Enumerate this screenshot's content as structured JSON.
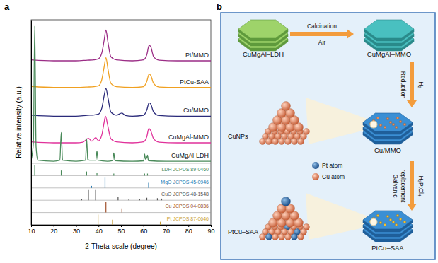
{
  "chart_data": {
    "type": "line",
    "title": "a",
    "x_label": "2-Theta-scale (degree)",
    "y_label": "Relative intensity (a.u.)",
    "xlim": [
      10,
      90
    ],
    "xticks": [
      10,
      20,
      30,
      40,
      50,
      60,
      70,
      80,
      90
    ],
    "ylim": [
      0,
      100
    ],
    "tick_labels": "x",
    "series": [
      {
        "name": "Pt/MMO",
        "color": "#9b2d86",
        "x": [
          10,
          20,
          30,
          35,
          38,
          40,
          41.5,
          42.5,
          43.3,
          44.2,
          45.5,
          48,
          55,
          60,
          61.5,
          62.5,
          63.2,
          64.5,
          67,
          75,
          90
        ],
        "values": [
          80.5,
          80,
          80,
          80.3,
          80.5,
          81,
          84,
          90,
          95,
          89,
          82,
          80.5,
          80,
          80.5,
          83,
          87.5,
          87,
          82,
          80.3,
          80,
          80
        ]
      },
      {
        "name": "PtCu-SAA",
        "color": "#f0a020",
        "x": [
          10,
          20,
          30,
          35,
          38,
          40,
          41.5,
          42.5,
          43.3,
          44.2,
          45.5,
          48,
          55,
          60,
          61.5,
          62.5,
          63.2,
          64.5,
          67,
          75,
          90
        ],
        "values": [
          67.5,
          67,
          67,
          67.2,
          67.4,
          67.8,
          71,
          77,
          81.5,
          76,
          69,
          67.4,
          67,
          67.4,
          70,
          73.5,
          73,
          69,
          67.2,
          67,
          67
        ]
      },
      {
        "name": "Cu/MMO",
        "color": "#2a2a7a",
        "x": [
          10,
          20,
          30,
          35,
          38,
          40,
          41.5,
          42.5,
          43.3,
          44.2,
          45.5,
          48,
          50.4,
          52,
          55,
          60,
          61.5,
          62.5,
          63.2,
          64.5,
          67,
          75,
          90
        ],
        "values": [
          53.5,
          53,
          53,
          53.4,
          53.6,
          54,
          57,
          63,
          66.5,
          62,
          55,
          53.5,
          54.5,
          53.3,
          53,
          53.4,
          56,
          59.5,
          59,
          55,
          53.3,
          53,
          53
        ]
      },
      {
        "name": "CuMgAl-MMO",
        "color": "#e0309a",
        "x": [
          10,
          20,
          30,
          33,
          35.5,
          37,
          38.7,
          40,
          41.5,
          42.5,
          43.1,
          44,
          45.5,
          48,
          55,
          60,
          61.5,
          62.4,
          63.2,
          64.5,
          67,
          75,
          90
        ],
        "values": [
          40.5,
          40,
          40,
          40.3,
          42.2,
          40.8,
          42.5,
          41,
          44,
          50,
          53,
          49,
          42,
          40.5,
          40,
          40.5,
          43,
          47,
          46,
          42,
          40.3,
          40,
          40
        ]
      },
      {
        "name": "CuMgAl-LDH",
        "color": "#4a8a5a",
        "x": [
          10,
          11,
          11.6,
          12.2,
          13,
          20,
          22.8,
          23.4,
          24,
          30,
          34.2,
          34.7,
          35.2,
          36,
          38.8,
          39.3,
          39.8,
          44,
          46.3,
          46.8,
          47.3,
          55,
          60.1,
          60.5,
          60.9,
          61.4,
          61.8,
          62.2,
          70,
          90
        ],
        "values": [
          31.5,
          40,
          97,
          38,
          31.5,
          31,
          31.5,
          45,
          31.5,
          31,
          31.5,
          42,
          32,
          31.5,
          31.5,
          36,
          31.5,
          31,
          31.3,
          35,
          31.3,
          31,
          31.2,
          34.5,
          32,
          32.5,
          34,
          31.3,
          31,
          31
        ]
      }
    ],
    "references": [
      {
        "name": "LDH JCPDS 89-0460",
        "color": "#4a8a5a",
        "baseline": 24,
        "x": [
          11.6,
          23.4,
          34.7,
          39.3,
          46.8,
          60.5,
          61.8
        ],
        "values": [
          5,
          2.5,
          2,
          1.5,
          1,
          1,
          1
        ]
      },
      {
        "name": "MgO JCPDS 45-0946",
        "color": "#2a7ab0",
        "baseline": 18,
        "x": [
          36.9,
          42.9,
          62.3
        ],
        "values": [
          1,
          5,
          2.5
        ]
      },
      {
        "name": "CuO JCPDS 48-1548",
        "color": "#555555",
        "baseline": 12,
        "x": [
          32.5,
          35.5,
          38.7,
          48.7,
          53.5,
          58.3,
          61.5,
          66.2,
          68.1
        ],
        "values": [
          0.7,
          5,
          5,
          1.5,
          0.8,
          0.8,
          1.2,
          1,
          0.8
        ]
      },
      {
        "name": "Cu JCPDS 04-0836",
        "color": "#a0522d",
        "baseline": 6,
        "x": [
          43.3,
          50.4
        ],
        "values": [
          5,
          2
        ]
      },
      {
        "name": "Pt JCPDS 87-0646",
        "color": "#c8a040",
        "baseline": 0,
        "x": [
          39.8,
          46.2,
          67.5
        ],
        "values": [
          5,
          2.5,
          1.5
        ]
      }
    ]
  },
  "diagram": {
    "title": "b",
    "nodes": [
      {
        "label": "CuMgAl–LDH"
      },
      {
        "label": "CuMgAl–MMO"
      },
      {
        "label": "Cu/MMO"
      },
      {
        "label": "PtCu–SAA"
      }
    ],
    "steps": [
      {
        "lines": [
          "Calcination"
        ],
        "condition": "Air"
      },
      {
        "lines": [
          "Reduction"
        ],
        "condition": "H₂"
      },
      {
        "lines": [
          "Galvanic",
          "replacement"
        ],
        "condition": "H₂PtCl₄"
      }
    ],
    "callouts": [
      {
        "label": "CuNPs"
      },
      {
        "label": "PtCu–SAA"
      }
    ],
    "legend": [
      {
        "label": "Pt atom"
      },
      {
        "label": "Cu atom"
      }
    ]
  }
}
